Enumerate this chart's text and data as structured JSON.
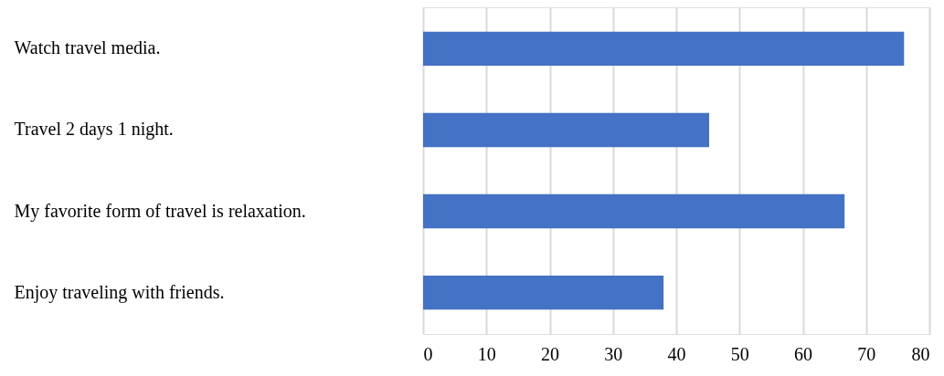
{
  "chart_data": {
    "type": "bar",
    "orientation": "horizontal",
    "categories": [
      "Watch travel media.",
      "Travel 2 days 1 night.",
      "My favorite form of travel is relaxation.",
      "Enjoy traveling with friends."
    ],
    "values": [
      76,
      45.2,
      66.6,
      38
    ],
    "color": "#4472c4",
    "xlim": [
      0,
      80
    ],
    "xticks": [
      0,
      10,
      20,
      30,
      40,
      50,
      60,
      70,
      80
    ],
    "grid": "x"
  }
}
